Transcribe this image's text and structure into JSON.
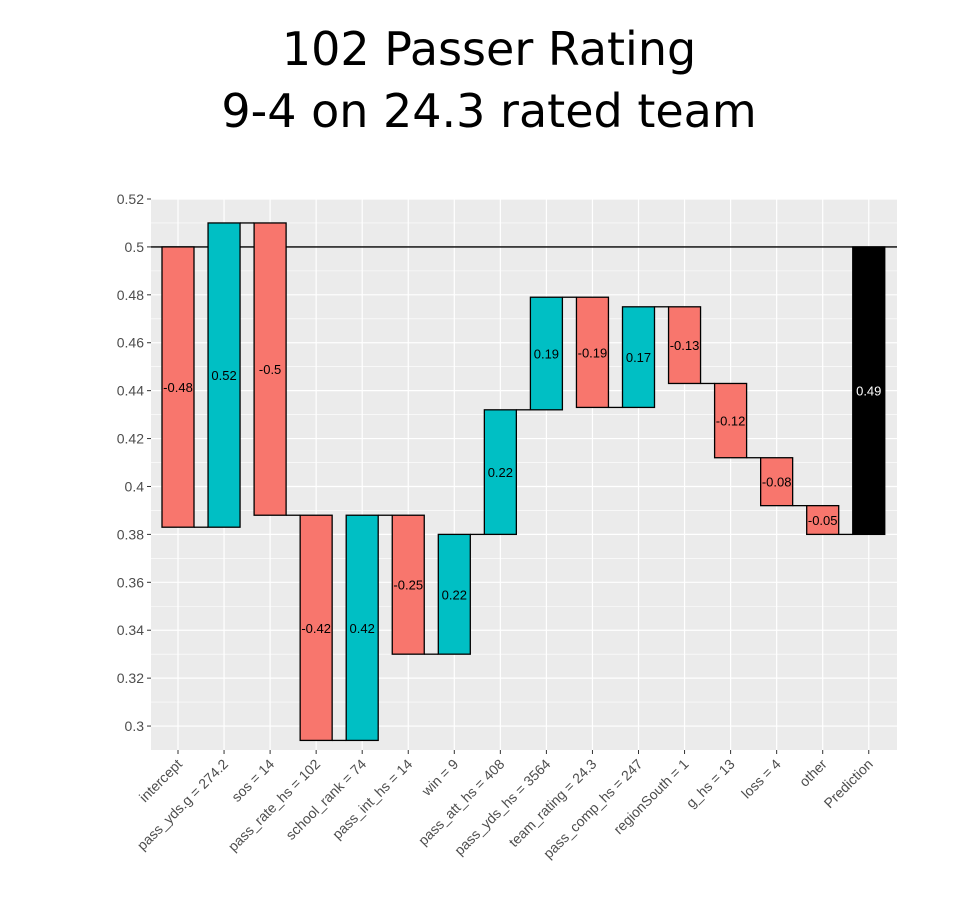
{
  "titles": {
    "line1": "102 Passer Rating",
    "line2": "9-4 on 24.3 rated team"
  },
  "colors": {
    "negative": "#F8766D",
    "positive": "#00BFC4",
    "prediction": "#000000",
    "panel_bg": "#EBEBEB",
    "grid": "#FFFFFF"
  },
  "chart_data": {
    "type": "bar",
    "subtype": "waterfall",
    "title": "102 Passer Rating\n9-4 on 24.3 rated team",
    "xlabel": "",
    "ylabel": "",
    "ylim": [
      0.29,
      0.52
    ],
    "yticks": [
      0.3,
      0.32,
      0.34,
      0.36,
      0.38,
      0.4,
      0.42,
      0.44,
      0.46,
      0.48,
      0.5,
      0.52
    ],
    "ytick_labels": [
      "0.3",
      "0.32",
      "0.34",
      "0.36",
      "0.38",
      "0.4",
      "0.42",
      "0.44",
      "0.46",
      "0.48",
      "0.5",
      "0.52"
    ],
    "reference_line": 0.5,
    "grid": true,
    "categories": [
      "intercept",
      "pass_yds.g = 274.2",
      "sos = 14",
      "pass_rate_hs = 102",
      "school_rank = 74",
      "pass_int_hs = 14",
      "win = 9",
      "pass_att_hs = 408",
      "pass_yds_hs = 3564",
      "team_rating = 24.3",
      "pass_comp_hs = 247",
      "regionSouth = 1",
      "g_hs = 13",
      "loss = 4",
      "other",
      "Prediction"
    ],
    "bars": [
      {
        "start": 0.5,
        "end": 0.383,
        "label": "-0.48",
        "sign": "negative"
      },
      {
        "start": 0.383,
        "end": 0.51,
        "label": "0.52",
        "sign": "positive"
      },
      {
        "start": 0.51,
        "end": 0.388,
        "label": "-0.5",
        "sign": "negative"
      },
      {
        "start": 0.388,
        "end": 0.294,
        "label": "-0.42",
        "sign": "negative"
      },
      {
        "start": 0.294,
        "end": 0.388,
        "label": "0.42",
        "sign": "positive"
      },
      {
        "start": 0.388,
        "end": 0.33,
        "label": "-0.25",
        "sign": "negative"
      },
      {
        "start": 0.33,
        "end": 0.38,
        "label": "0.22",
        "sign": "positive"
      },
      {
        "start": 0.38,
        "end": 0.432,
        "label": "0.22",
        "sign": "positive"
      },
      {
        "start": 0.432,
        "end": 0.479,
        "label": "0.19",
        "sign": "positive"
      },
      {
        "start": 0.479,
        "end": 0.433,
        "label": "-0.19",
        "sign": "negative"
      },
      {
        "start": 0.433,
        "end": 0.475,
        "label": "0.17",
        "sign": "positive"
      },
      {
        "start": 0.475,
        "end": 0.443,
        "label": "-0.13",
        "sign": "negative"
      },
      {
        "start": 0.443,
        "end": 0.412,
        "label": "-0.12",
        "sign": "negative"
      },
      {
        "start": 0.412,
        "end": 0.392,
        "label": "-0.08",
        "sign": "negative"
      },
      {
        "start": 0.392,
        "end": 0.38,
        "label": "-0.05",
        "sign": "negative"
      },
      {
        "start": 0.5,
        "end": 0.38,
        "label": "0.49",
        "sign": "prediction"
      }
    ]
  }
}
